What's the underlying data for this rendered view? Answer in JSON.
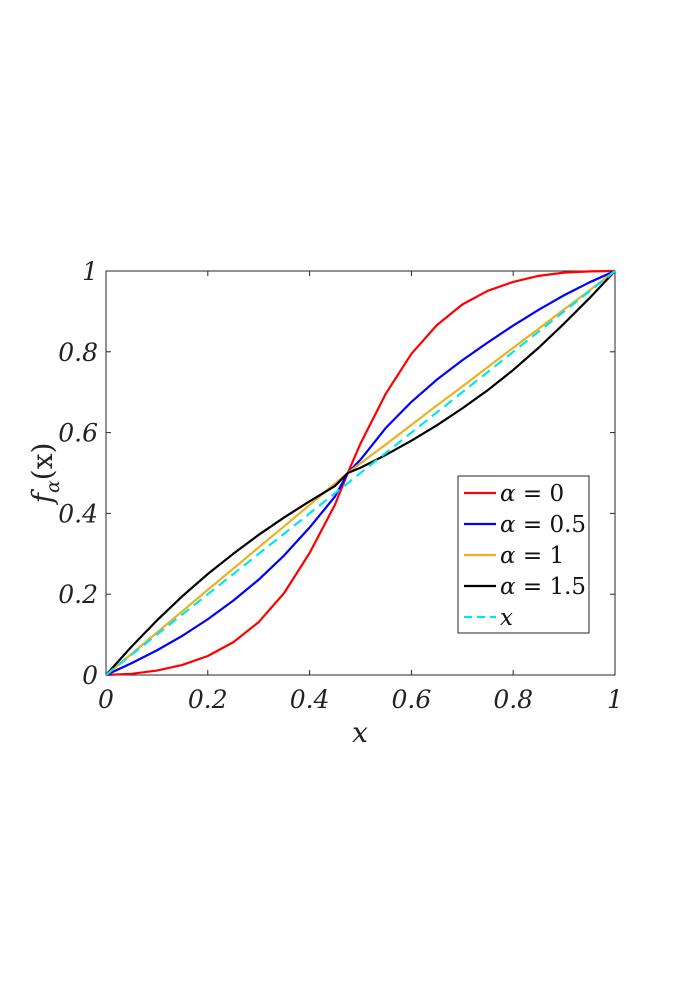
{
  "chart_data": {
    "type": "line",
    "xlabel": "x",
    "ylabel": "f_α(x)",
    "ylabel_parts": {
      "base": "f",
      "sub": "α",
      "arg": "(x)"
    },
    "xlim": [
      0,
      1
    ],
    "ylim": [
      0,
      1
    ],
    "grid": false,
    "legend_placement": "right",
    "x_ticks": [
      0,
      0.2,
      0.4,
      0.6,
      0.8,
      1
    ],
    "x_tick_labels": [
      "0",
      "0.2",
      "0.4",
      "0.6",
      "0.8",
      "1"
    ],
    "y_ticks": [
      0,
      0.2,
      0.4,
      0.6,
      0.8,
      1
    ],
    "y_tick_labels": [
      "0",
      "0.2",
      "0.4",
      "0.6",
      "0.8",
      "1"
    ],
    "x": [
      0,
      0.05,
      0.1,
      0.15,
      0.2,
      0.25,
      0.3,
      0.35,
      0.4,
      0.45,
      0.475,
      0.5,
      0.55,
      0.6,
      0.65,
      0.7,
      0.75,
      0.8,
      0.85,
      0.9,
      0.95,
      1
    ],
    "series": [
      {
        "name": "α = 0",
        "label": {
          "greek": "α",
          "op": " = ",
          "value": "0"
        },
        "color": "#ff0000",
        "dash": "solid",
        "values": [
          0,
          0.003,
          0.011,
          0.025,
          0.047,
          0.081,
          0.131,
          0.203,
          0.302,
          0.422,
          0.5,
          0.573,
          0.697,
          0.795,
          0.866,
          0.917,
          0.951,
          0.973,
          0.988,
          0.996,
          0.999,
          1
        ]
      },
      {
        "name": "α = 0.5",
        "label": {
          "greek": "α",
          "op": " = ",
          "value": "0.5"
        },
        "color": "#0000ff",
        "dash": "solid",
        "values": [
          0,
          0.029,
          0.061,
          0.097,
          0.138,
          0.184,
          0.236,
          0.296,
          0.365,
          0.442,
          0.5,
          0.533,
          0.612,
          0.676,
          0.731,
          0.779,
          0.823,
          0.865,
          0.904,
          0.94,
          0.972,
          1
        ]
      },
      {
        "name": "α = 1",
        "label": {
          "greek": "α",
          "op": " = ",
          "value": "1"
        },
        "color": "#edb120",
        "dash": "solid",
        "values": [
          0,
          0.052,
          0.105,
          0.158,
          0.211,
          0.263,
          0.316,
          0.368,
          0.421,
          0.474,
          0.5,
          0.524,
          0.571,
          0.619,
          0.667,
          0.714,
          0.762,
          0.81,
          0.857,
          0.905,
          0.952,
          1
        ]
      },
      {
        "name": "α = 1.5",
        "label": {
          "greek": "α",
          "op": " = ",
          "value": "1.5"
        },
        "color": "#000000",
        "dash": "solid",
        "values": [
          0,
          0.07,
          0.135,
          0.195,
          0.25,
          0.3,
          0.347,
          0.39,
          0.43,
          0.468,
          0.5,
          0.513,
          0.545,
          0.58,
          0.618,
          0.66,
          0.705,
          0.755,
          0.81,
          0.87,
          0.933,
          1
        ]
      },
      {
        "name": "x",
        "label": {
          "greek": "",
          "op": "",
          "value": "x",
          "italic": true
        },
        "color": "#00e5ee",
        "dash": "dashed",
        "values": [
          0,
          0.05,
          0.1,
          0.15,
          0.2,
          0.25,
          0.3,
          0.35,
          0.4,
          0.45,
          0.475,
          0.5,
          0.55,
          0.6,
          0.65,
          0.7,
          0.75,
          0.8,
          0.85,
          0.9,
          0.95,
          1
        ]
      }
    ]
  }
}
